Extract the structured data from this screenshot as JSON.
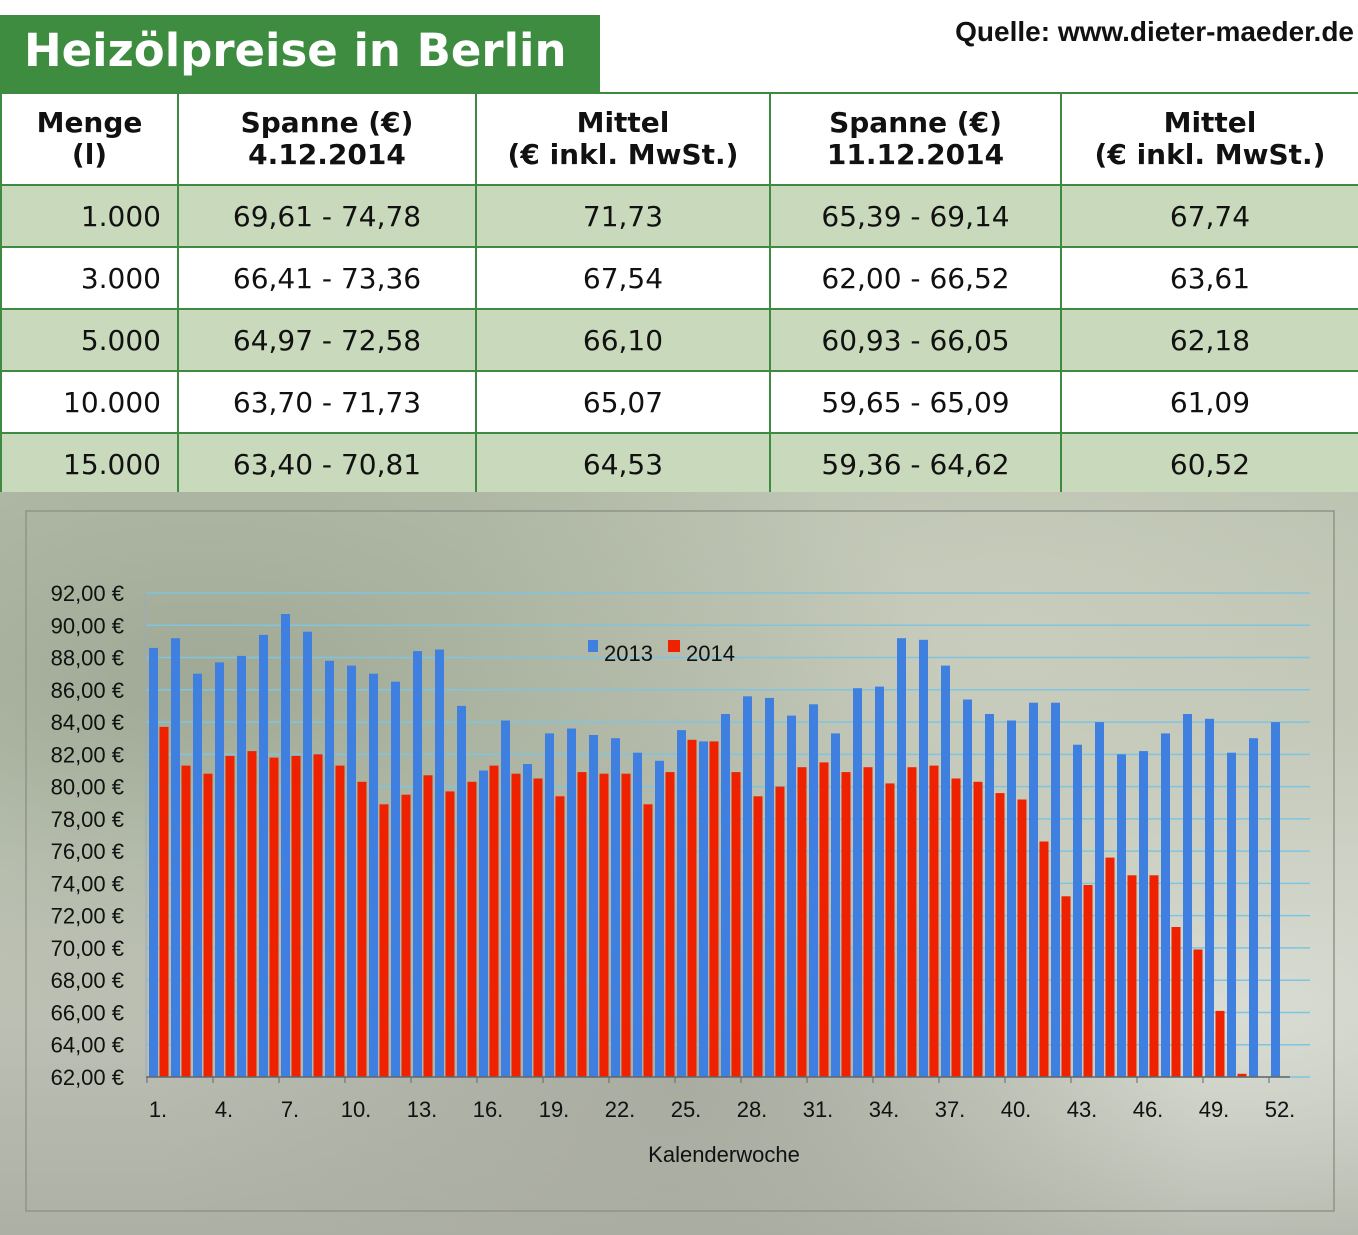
{
  "header": {
    "title": "Heizölpreise in Berlin",
    "source": "Quelle: www.dieter-maeder.de"
  },
  "table": {
    "headers": [
      [
        "Menge",
        "(l)"
      ],
      [
        "Spanne (€)",
        "4.12.2014"
      ],
      [
        "Mittel",
        "(€ inkl. MwSt.)"
      ],
      [
        "Spanne (€)",
        "11.12.2014"
      ],
      [
        "Mittel",
        "(€ inkl. MwSt.)"
      ]
    ],
    "rows": [
      [
        "1.000",
        "69,61 - 74,78",
        "71,73",
        "65,39 - 69,14",
        "67,74"
      ],
      [
        "3.000",
        "66,41 - 73,36",
        "67,54",
        "62,00 - 66,52",
        "63,61"
      ],
      [
        "5.000",
        "64,97 - 72,58",
        "66,10",
        "60,93 - 66,05",
        "62,18"
      ],
      [
        "10.000",
        "63,70 - 71,73",
        "65,07",
        "59,65 - 65,09",
        "61,09"
      ],
      [
        "15.000",
        "63,40 - 70,81",
        "64,53",
        "59,36 - 64,62",
        "60,52"
      ]
    ]
  },
  "chart_data": {
    "type": "bar",
    "xlabel": "Kalenderwoche",
    "ylabel": "",
    "ylim": [
      62,
      92
    ],
    "y_ticks": [
      "62,00 €",
      "64,00 €",
      "66,00 €",
      "68,00 €",
      "70,00 €",
      "72,00 €",
      "74,00 €",
      "76,00 €",
      "78,00 €",
      "80,00 €",
      "82,00 €",
      "84,00 €",
      "86,00 €",
      "88,00 €",
      "90,00 €",
      "92,00 €"
    ],
    "x_tick_labels": [
      "1.",
      "4.",
      "7.",
      "10.",
      "13.",
      "16.",
      "19.",
      "22.",
      "25.",
      "28.",
      "31.",
      "34.",
      "37.",
      "40.",
      "43.",
      "46.",
      "49.",
      "52."
    ],
    "grid": true,
    "legend_position": "top-center",
    "categories": [
      1,
      2,
      3,
      4,
      5,
      6,
      7,
      8,
      9,
      10,
      11,
      12,
      13,
      14,
      15,
      16,
      17,
      18,
      19,
      20,
      21,
      22,
      23,
      24,
      25,
      26,
      27,
      28,
      29,
      30,
      31,
      32,
      33,
      34,
      35,
      36,
      37,
      38,
      39,
      40,
      41,
      42,
      43,
      44,
      45,
      46,
      47,
      48,
      49,
      50,
      51,
      52
    ],
    "series": [
      {
        "name": "2013",
        "color": "#3f7fe0",
        "values": [
          88.6,
          89.2,
          87.0,
          87.7,
          88.1,
          89.4,
          90.7,
          89.6,
          87.8,
          87.5,
          87.0,
          86.5,
          88.4,
          88.5,
          85.0,
          81.0,
          84.1,
          81.4,
          83.3,
          83.6,
          83.2,
          83.0,
          82.1,
          81.6,
          83.5,
          82.8,
          84.5,
          85.6,
          85.5,
          84.4,
          85.1,
          83.3,
          86.1,
          86.2,
          89.2,
          89.1,
          87.5,
          85.4,
          84.5,
          84.1,
          85.2,
          85.2,
          82.6,
          84.0,
          82.0,
          82.2,
          83.3,
          84.5,
          84.2,
          82.1,
          83.0,
          84.0
        ]
      },
      {
        "name": "2014",
        "color": "#ee2200",
        "values": [
          83.7,
          81.3,
          80.8,
          81.9,
          82.2,
          81.8,
          81.9,
          82.0,
          81.3,
          80.3,
          78.9,
          79.5,
          80.7,
          79.7,
          80.3,
          81.3,
          80.8,
          80.5,
          79.4,
          80.9,
          80.8,
          80.8,
          78.9,
          80.9,
          82.9,
          82.8,
          80.9,
          79.4,
          80.0,
          81.2,
          81.5,
          80.9,
          81.2,
          80.2,
          81.2,
          81.3,
          80.5,
          80.3,
          79.6,
          79.2,
          76.6,
          73.2,
          73.9,
          75.6,
          74.5,
          74.5,
          71.3,
          69.9,
          66.1,
          62.2,
          null,
          null
        ]
      }
    ]
  }
}
